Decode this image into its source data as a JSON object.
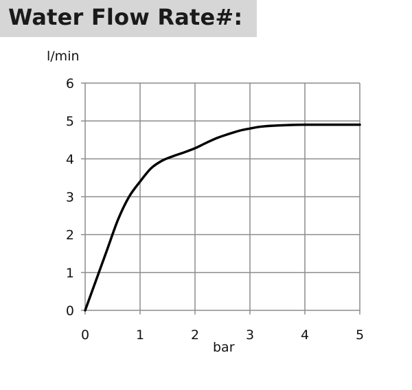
{
  "title": "Water Flow Rate#:",
  "chart_data": {
    "type": "line",
    "title": "Water Flow Rate#:",
    "xlabel": "bar",
    "ylabel": "l/min",
    "xlim": [
      0,
      5
    ],
    "ylim": [
      0,
      6
    ],
    "x_ticks": [
      "0",
      "1",
      "2",
      "3",
      "4",
      "5"
    ],
    "y_ticks": [
      "0",
      "1",
      "2",
      "3",
      "4",
      "5",
      "6"
    ],
    "grid": true,
    "series": [
      {
        "x": [
          0,
          0.2,
          0.4,
          0.6,
          0.8,
          1.0,
          1.2,
          1.4,
          1.6,
          1.8,
          2.0,
          2.2,
          2.4,
          2.6,
          2.8,
          3.0,
          3.2,
          3.5,
          4.0,
          4.5,
          5.0
        ],
        "y": [
          0,
          0.8,
          1.6,
          2.4,
          3.0,
          3.4,
          3.75,
          3.95,
          4.07,
          4.17,
          4.28,
          4.42,
          4.55,
          4.65,
          4.74,
          4.8,
          4.85,
          4.88,
          4.9,
          4.9,
          4.9
        ]
      }
    ]
  },
  "colors": {
    "title_band": "#d6d6d6",
    "grid": "#8c8c8c",
    "line": "#000000"
  }
}
